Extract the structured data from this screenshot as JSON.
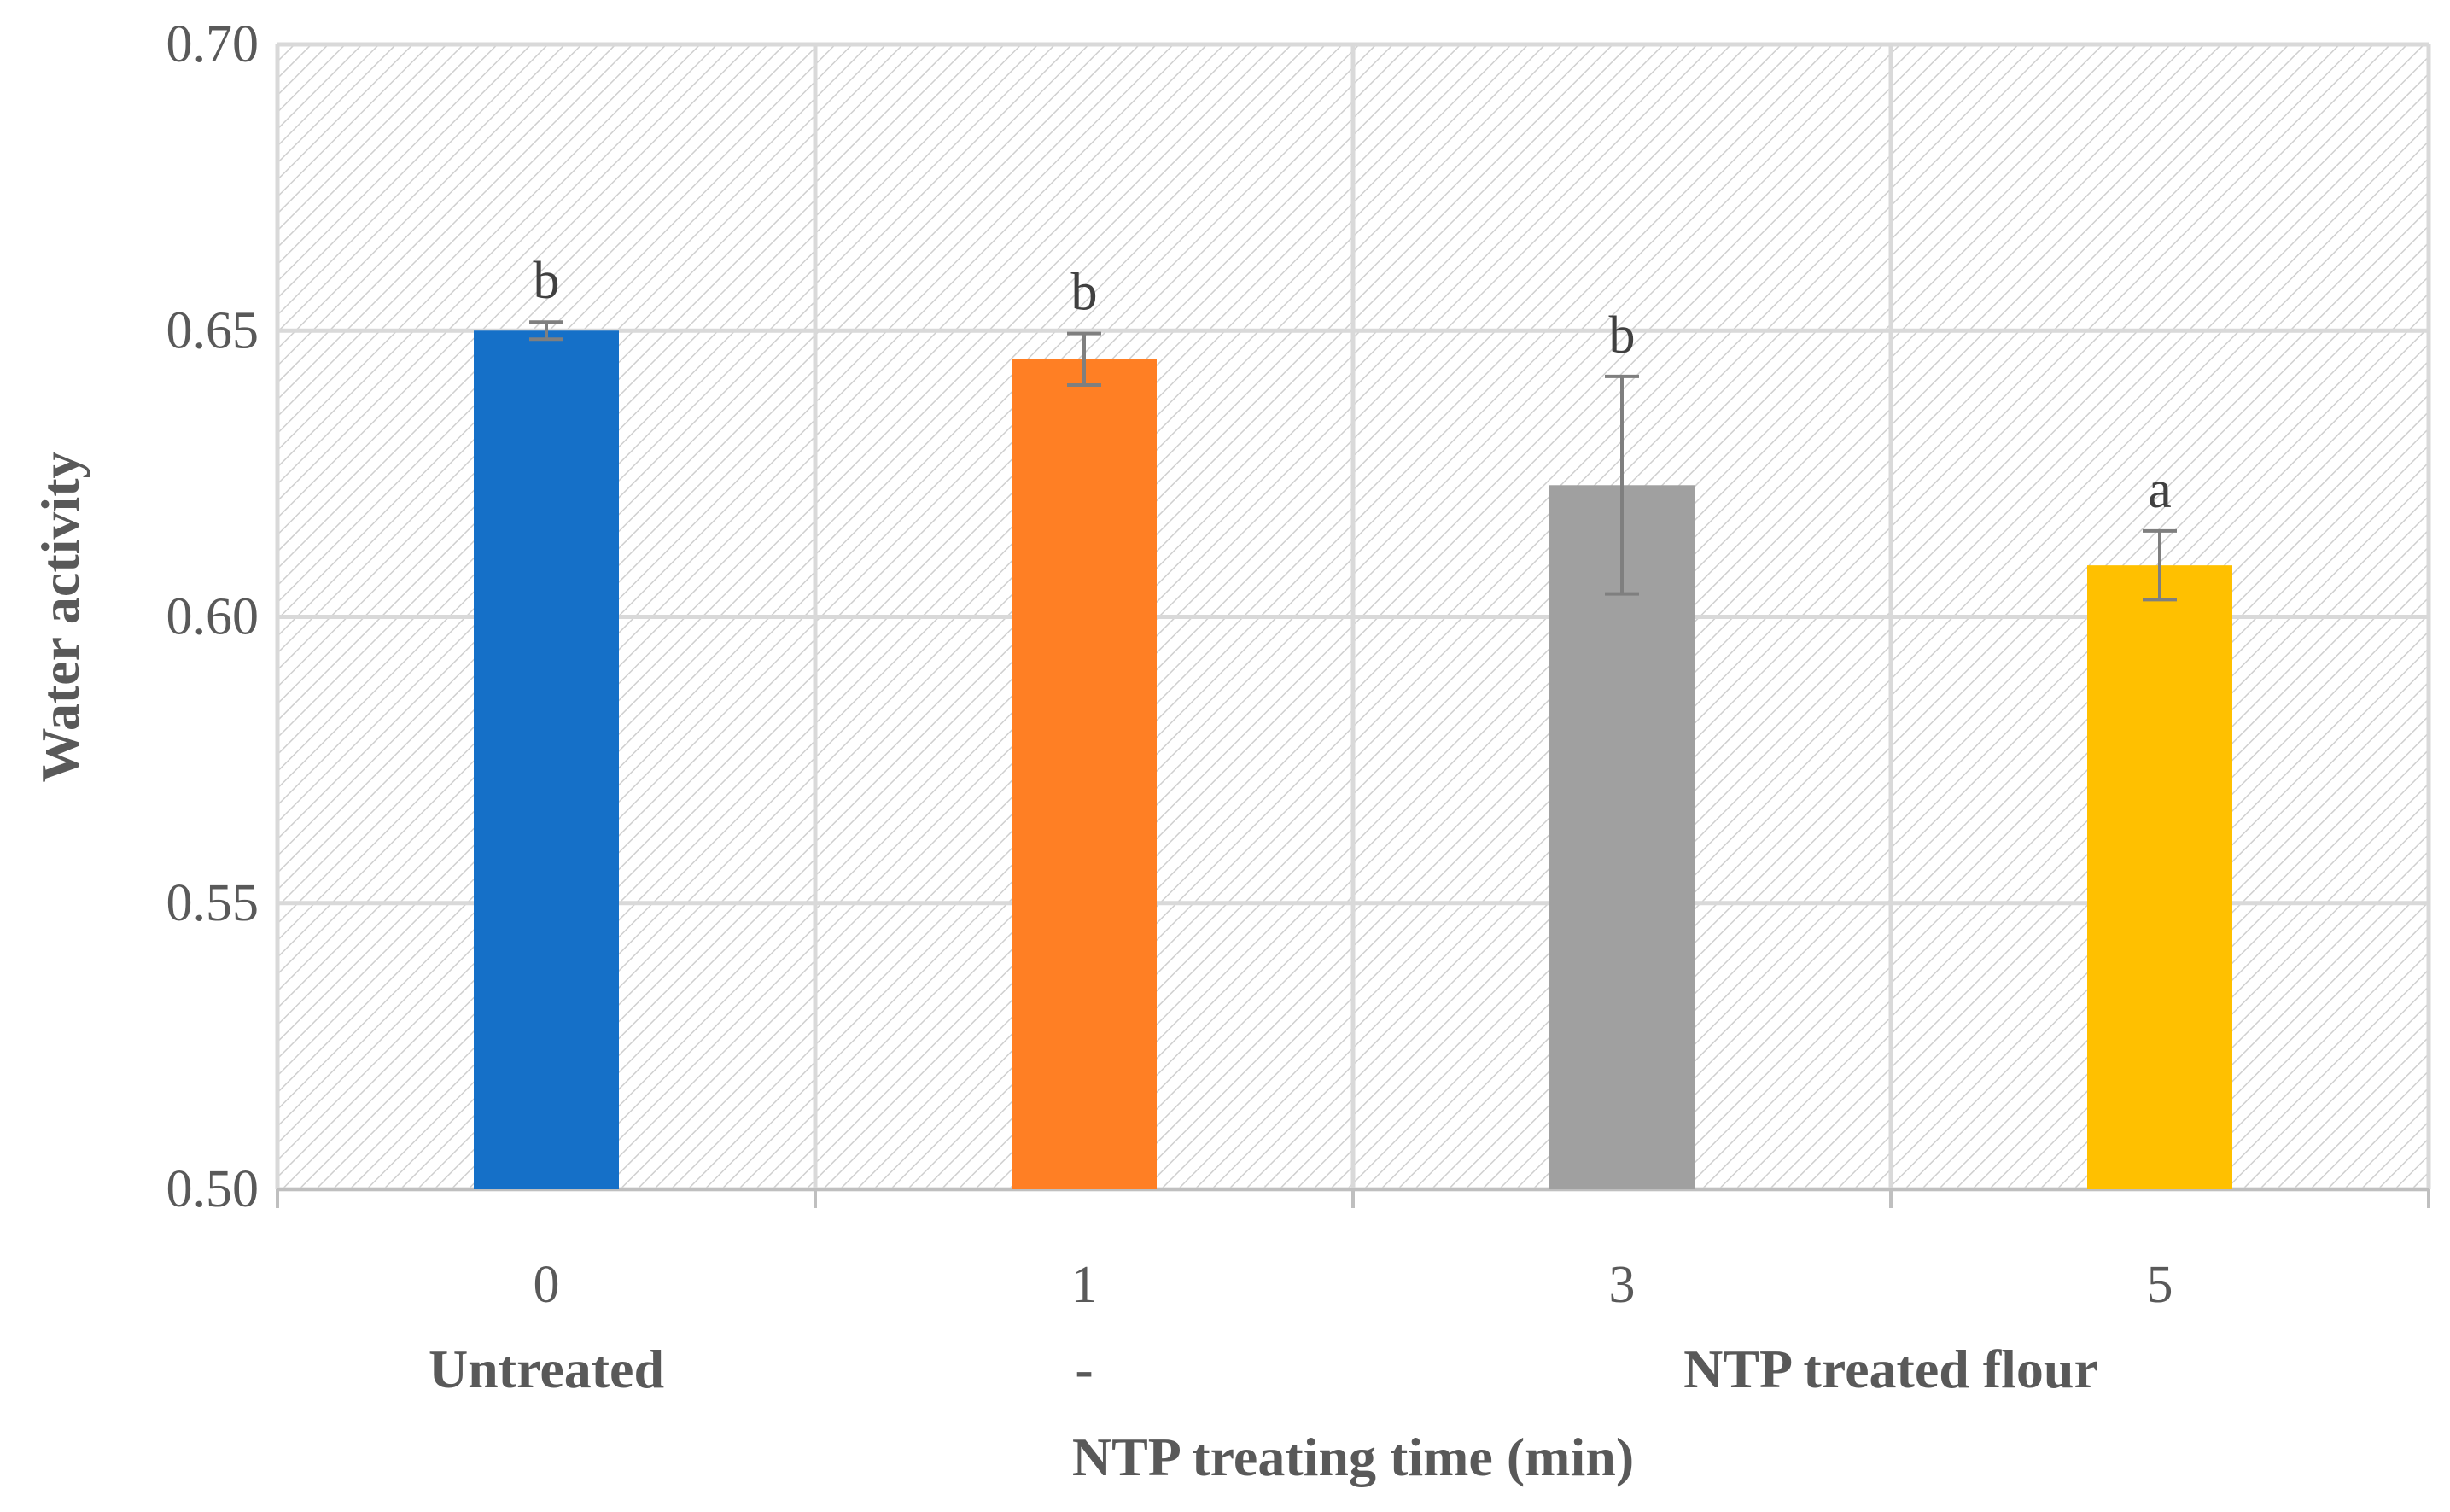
{
  "chart_data": {
    "type": "bar",
    "title": "",
    "xlabel": "NTP treating time (min)",
    "ylabel": "Water activity",
    "ylim": [
      0.5,
      0.7
    ],
    "yticks": [
      "0.50",
      "0.55",
      "0.60",
      "0.65",
      "0.70"
    ],
    "grid": true,
    "categories": [
      "0",
      "1",
      "3",
      "5"
    ],
    "values": [
      0.65,
      0.645,
      0.623,
      0.609
    ],
    "errors": [
      0.0015,
      0.0045,
      0.019,
      0.006
    ],
    "significance": [
      "b",
      "b",
      "b",
      "a"
    ],
    "colors": [
      "#1570C8",
      "#FF7F24",
      "#A0A0A0",
      "#FFC000"
    ],
    "group_labels": [
      {
        "text": "Untreated",
        "under": [
          0
        ]
      },
      {
        "text": "-",
        "under": [
          1
        ]
      },
      {
        "text": "NTP treated flour",
        "under": [
          2,
          3
        ]
      }
    ]
  }
}
